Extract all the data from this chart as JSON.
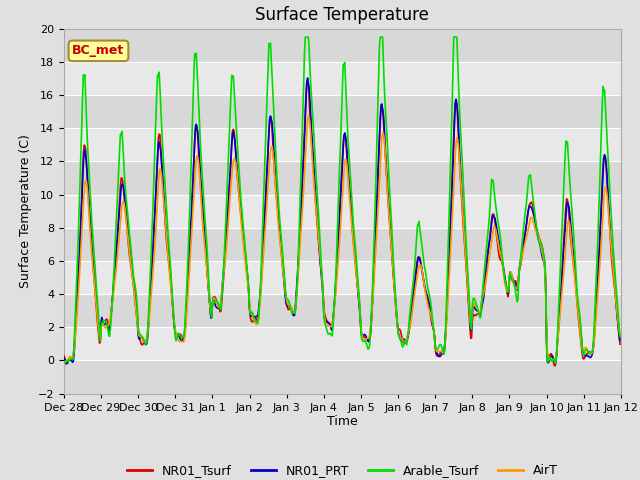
{
  "title": "Surface Temperature",
  "xlabel": "Time",
  "ylabel": "Surface Temperature (C)",
  "ylim": [
    -2,
    20
  ],
  "yticks": [
    -2,
    0,
    2,
    4,
    6,
    8,
    10,
    12,
    14,
    16,
    18,
    20
  ],
  "annotation": "BC_met",
  "annotation_color": "#cc0000",
  "annotation_bg": "#ffff99",
  "annotation_border": "#aa8833",
  "series_colors": {
    "NR01_Tsurf": "#dd0000",
    "NR01_PRT": "#0000cc",
    "Arable_Tsurf": "#00dd00",
    "AirT": "#ff9900"
  },
  "series_labels": [
    "NR01_Tsurf",
    "NR01_PRT",
    "Arable_Tsurf",
    "AirT"
  ],
  "fig_facecolor": "#e0e0e0",
  "plot_facecolor": "#e8e8e8",
  "linewidth": 1.2,
  "tick_fontsize": 8,
  "label_fontsize": 9,
  "title_fontsize": 12,
  "legend_fontsize": 9,
  "band_colors": [
    "#d8d8d8",
    "#e8e8e8"
  ],
  "grid_color": "#ffffff"
}
